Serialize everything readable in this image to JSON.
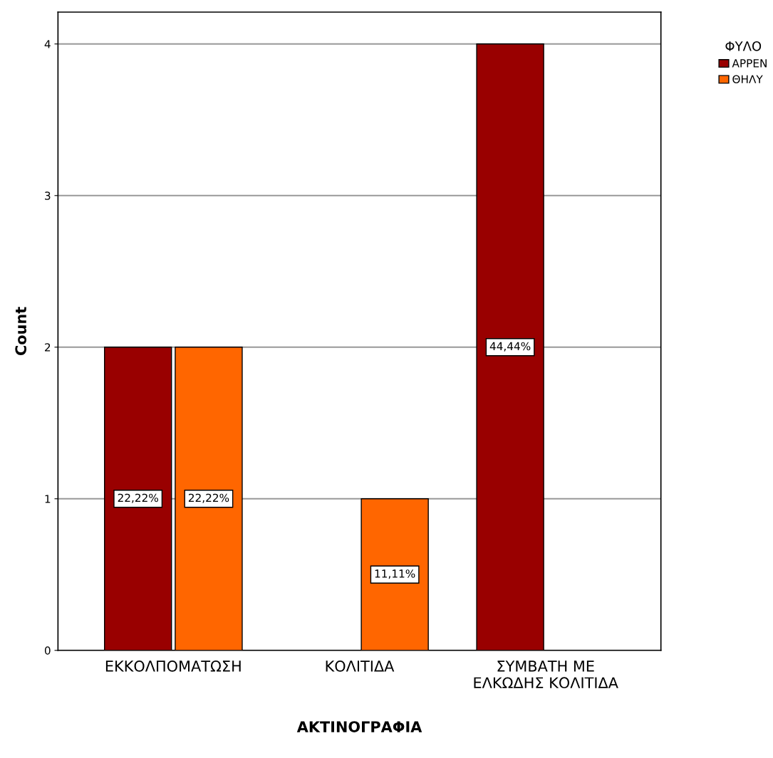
{
  "chart_data": {
    "type": "bar",
    "xlabel": "ΑΚΤΙΝΟΓΡΑΦΙΑ",
    "ylabel": "Count",
    "legend_title": "ΦΥΛΟ",
    "categories": [
      "ΕΚΚΟΛΠΟΜΑΤΩΣΗ",
      "ΚΟΛΙΤΙΔΑ",
      "ΣΥΜΒΑΤΗ ΜΕ\nΕΛΚΩΔΗΣ ΚΟΛΙΤΙΔΑ"
    ],
    "series": [
      {
        "name": "ΑΡΡΕΝ",
        "color": "#990000",
        "values": [
          2,
          null,
          4
        ]
      },
      {
        "name": "ΘΗΛΥ",
        "color": "#ff6600",
        "values": [
          2,
          1,
          null
        ]
      }
    ],
    "annotations": [
      {
        "text": "22,22%",
        "x": "ΕΚΚΟΛΠΟΜΑΤΩΣΗ",
        "y": 1
      },
      {
        "text": "22,22%",
        "x": "ΕΚΚΟΛΠΟΜΑΤΩΣΗ",
        "y": 1
      },
      {
        "text": "11,11%",
        "x": "ΚΟΛΙΤΙΔΑ",
        "y": 0.5
      },
      {
        "text": "44,44%",
        "x": "ΣΥΜΒΑΤΗ ΜΕ\nΕΛΚΩΔΗΣ ΚΟΛΙΤΙΔΑ",
        "y": 2
      }
    ],
    "ylim": [
      0,
      4.21
    ],
    "yticks": [
      0,
      1,
      2,
      3,
      4
    ],
    "grid": "y",
    "legend": "top right"
  }
}
